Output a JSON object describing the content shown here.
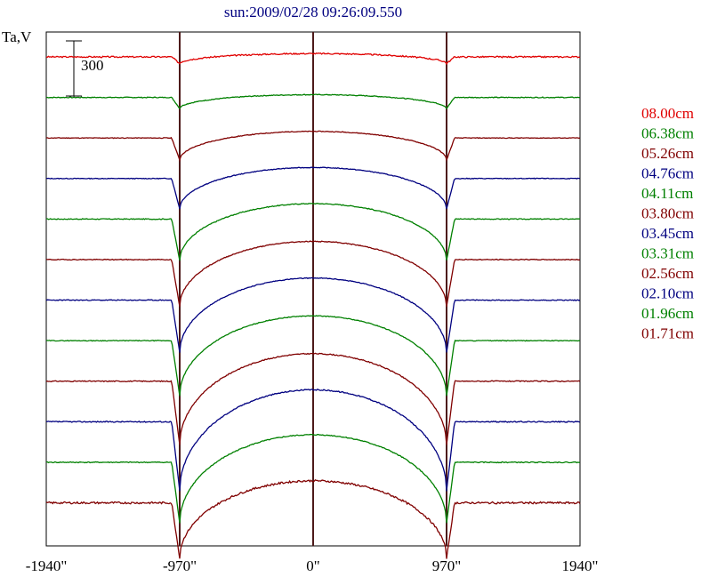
{
  "chart_data": {
    "type": "line",
    "title": "sun:2009/02/28 09:26:09.550",
    "ylabel": "Ta,V",
    "scale_bar_label": "300",
    "xlim": [
      -1940,
      1940
    ],
    "x_ticks": [
      -1940,
      -970,
      0,
      970,
      1940
    ],
    "x_tick_labels": [
      "-1940\"",
      "-970\"",
      "0\"",
      "970\"",
      "1940\""
    ],
    "vertical_markers": [
      -970,
      0,
      970
    ],
    "series": [
      {
        "name": "08.00cm",
        "color": "#e00000",
        "dip": 0.12,
        "dome": 0.06,
        "noise": 0.1,
        "seed": 3
      },
      {
        "name": "06.38cm",
        "color": "#008000",
        "dip": 0.2,
        "dome": 0.05,
        "noise": 0.06,
        "seed": 7
      },
      {
        "name": "05.26cm",
        "color": "#800000",
        "dip": 0.4,
        "dome": 0.12,
        "noise": 0.05,
        "seed": 11
      },
      {
        "name": "04.76cm",
        "color": "#000080",
        "dip": 0.55,
        "dome": 0.2,
        "noise": 0.05,
        "seed": 13
      },
      {
        "name": "04.11cm",
        "color": "#008000",
        "dip": 0.75,
        "dome": 0.28,
        "noise": 0.06,
        "seed": 17
      },
      {
        "name": "03.80cm",
        "color": "#800000",
        "dip": 0.85,
        "dome": 0.33,
        "noise": 0.06,
        "seed": 19
      },
      {
        "name": "03.45cm",
        "color": "#000080",
        "dip": 0.95,
        "dome": 0.4,
        "noise": 0.06,
        "seed": 23
      },
      {
        "name": "03.31cm",
        "color": "#008000",
        "dip": 1.0,
        "dome": 0.45,
        "noise": 0.05,
        "seed": 29
      },
      {
        "name": "02.56cm",
        "color": "#800000",
        "dip": 1.15,
        "dome": 0.5,
        "noise": 0.07,
        "seed": 31
      },
      {
        "name": "02.10cm",
        "color": "#000080",
        "dip": 1.25,
        "dome": 0.58,
        "noise": 0.08,
        "seed": 37
      },
      {
        "name": "01.96cm",
        "color": "#008000",
        "dip": 1.1,
        "dome": 0.5,
        "noise": 0.07,
        "seed": 41
      },
      {
        "name": "01.71cm",
        "color": "#800000",
        "dip": 1.0,
        "dome": 0.4,
        "noise": 0.14,
        "seed": 43
      }
    ],
    "grid": false,
    "legend_position": "right"
  }
}
